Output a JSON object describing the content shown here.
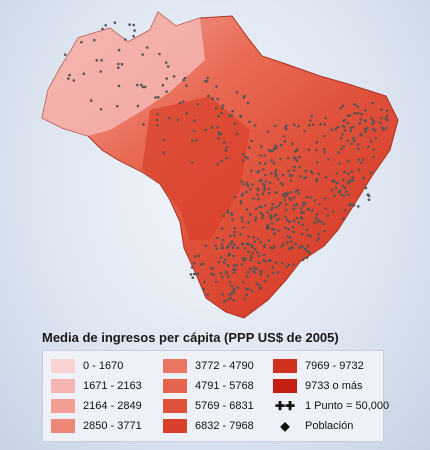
{
  "legend": {
    "title": "Media de ingresos per cápita (PPP US$ de 2005)",
    "classes": [
      {
        "label": "0 - 1670",
        "color": "#f7d4d2"
      },
      {
        "label": "1671 - 2163",
        "color": "#f4b6b2"
      },
      {
        "label": "2164 - 2849",
        "color": "#f29d93"
      },
      {
        "label": "2850 - 3771",
        "color": "#ee8777"
      },
      {
        "label": "3772 - 4790",
        "color": "#ea7662"
      },
      {
        "label": "4791 - 5768",
        "color": "#e5634c"
      },
      {
        "label": "5769 - 6831",
        "color": "#df503a"
      },
      {
        "label": "6832 - 7968",
        "color": "#d9402b"
      },
      {
        "label": "7969 - 9732",
        "color": "#d1311f"
      },
      {
        "label": "9733 o más",
        "color": "#c61d12"
      }
    ],
    "dot_label": "1 Punto = 50,000",
    "dot_icon": "plus-dots-icon",
    "population_label": "Población",
    "population_icon": "diamond-icon"
  }
}
